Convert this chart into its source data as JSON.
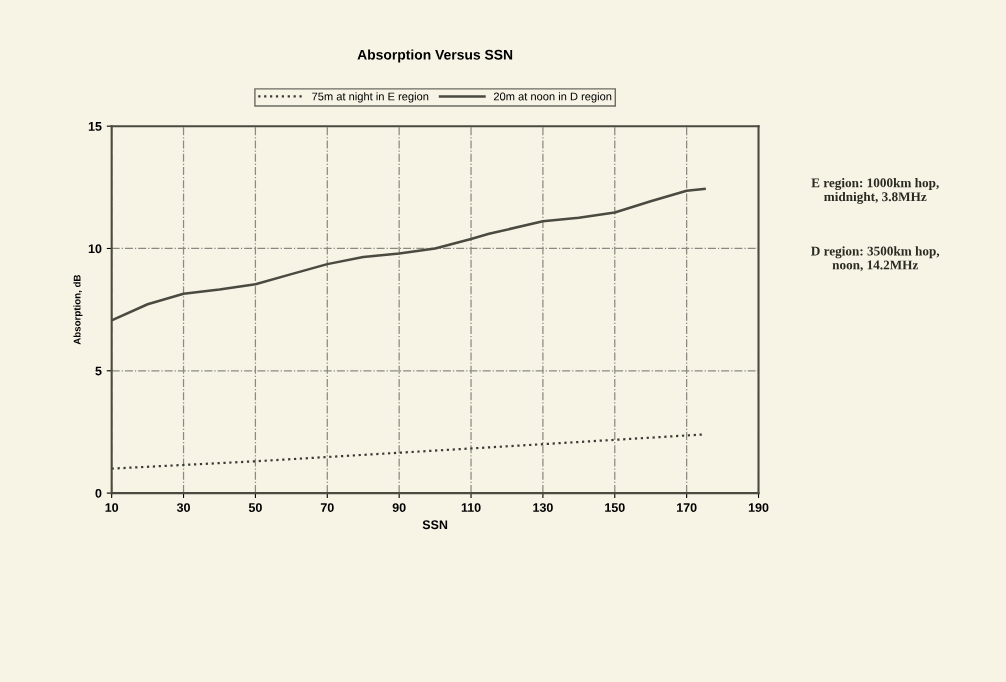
{
  "chart_data": {
    "type": "line",
    "title": "Absorption Versus SSN",
    "xlabel": "SSN",
    "ylabel": "Absorption, dB",
    "series": [
      {
        "name": "75m at night in E region",
        "color": "#3a3a32",
        "line_style": "dotted",
        "x": [
          10,
          50,
          90,
          130,
          175
        ],
        "values": [
          1.0,
          1.3,
          1.65,
          2.0,
          2.4
        ]
      },
      {
        "name": "20m at noon in D region",
        "color": "#4a4a40",
        "line_style": "solid",
        "x": [
          10,
          20,
          30,
          40,
          50,
          60,
          70,
          80,
          90,
          100,
          110,
          115,
          130,
          140,
          150,
          160,
          170,
          175
        ],
        "values": [
          7.06,
          7.72,
          8.15,
          8.32,
          8.54,
          8.95,
          9.36,
          9.65,
          9.79,
          10.0,
          10.39,
          10.6,
          11.11,
          11.26,
          11.47,
          11.93,
          12.36,
          12.44
        ]
      }
    ],
    "xlim": [
      10,
      190
    ],
    "xticks": [
      10,
      30,
      50,
      70,
      90,
      110,
      130,
      150,
      170,
      190
    ],
    "ylim": [
      0,
      15
    ],
    "yticks": [
      0,
      5,
      10,
      15
    ],
    "grid": true,
    "legend": "top",
    "marker": "none",
    "annotations": [
      "E region: 1000km hop,\nmidnight, 3.8MHz",
      "D region: 3500km hop,\nnoon, 14.2MHz"
    ]
  }
}
